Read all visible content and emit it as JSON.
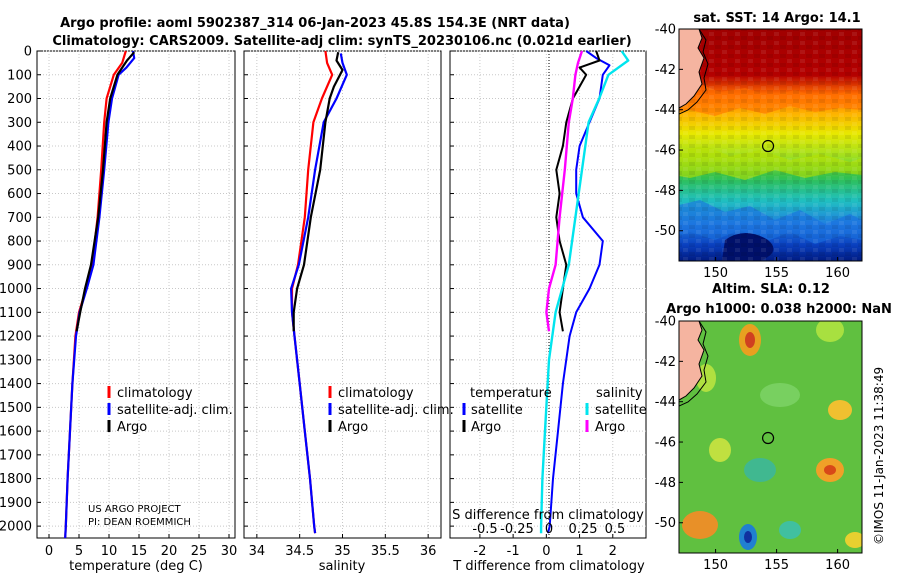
{
  "title": {
    "line1": "Argo profile: aoml 5902387_314 06-Jan-2023 45.8S 154.3E (NRT data)",
    "line2": "Climatology: CARS2009. Satellite-adj clim: synTS_20230106.nc (0.021d earlier)"
  },
  "credit": "©IMOS 11-Jan-2023 11:38:49",
  "colors": {
    "climatology": "#ff0000",
    "satellite": "#0000ff",
    "argo": "#000000",
    "s_satellite": "#00e5ee",
    "s_argo": "#ff00ff"
  },
  "depth_axis": {
    "ticks": [
      0,
      100,
      200,
      300,
      400,
      500,
      600,
      700,
      800,
      900,
      1000,
      1100,
      1200,
      1300,
      1400,
      1500,
      1600,
      1700,
      1800,
      1900,
      2000
    ],
    "ylim": [
      0,
      2050
    ]
  },
  "chart_data": [
    {
      "type": "line",
      "id": "temperature",
      "xlabel": "temperature (deg C)",
      "xlim": [
        -2,
        31
      ],
      "xticks": [
        0,
        5,
        10,
        15,
        20,
        25,
        30
      ],
      "legend": {
        "position": "lower-middle",
        "items": [
          "climatology",
          "satellite-adj. clim.",
          "Argo"
        ]
      },
      "series": [
        {
          "name": "climatology",
          "points": [
            [
              12.8,
              0
            ],
            [
              12.2,
              50
            ],
            [
              10.8,
              100
            ],
            [
              9.6,
              200
            ],
            [
              9.2,
              300
            ],
            [
              8.7,
              500
            ],
            [
              8.1,
              700
            ],
            [
              7.2,
              900
            ],
            [
              6.2,
              1000
            ],
            [
              5.0,
              1100
            ],
            [
              4.4,
              1200
            ],
            [
              3.9,
              1400
            ],
            [
              3.5,
              1600
            ],
            [
              3.1,
              1800
            ],
            [
              2.8,
              2000
            ],
            [
              2.7,
              2050
            ]
          ]
        },
        {
          "name": "satellite-adj. clim.",
          "points": [
            [
              14.0,
              0
            ],
            [
              14.2,
              30
            ],
            [
              12.9,
              70
            ],
            [
              11.6,
              100
            ],
            [
              10.5,
              200
            ],
            [
              9.9,
              300
            ],
            [
              9.2,
              500
            ],
            [
              8.4,
              700
            ],
            [
              7.4,
              900
            ],
            [
              6.3,
              1000
            ],
            [
              5.1,
              1100
            ],
            [
              4.5,
              1200
            ],
            [
              3.9,
              1400
            ],
            [
              3.5,
              1600
            ],
            [
              3.1,
              1800
            ],
            [
              2.8,
              2000
            ],
            [
              2.7,
              2050
            ]
          ]
        },
        {
          "name": "Argo",
          "points": [
            [
              14.2,
              5
            ],
            [
              13.0,
              40
            ],
            [
              11.4,
              100
            ],
            [
              10.2,
              200
            ],
            [
              9.6,
              300
            ],
            [
              9.0,
              500
            ],
            [
              8.2,
              700
            ],
            [
              7.0,
              900
            ],
            [
              6.0,
              1000
            ],
            [
              5.2,
              1100
            ],
            [
              4.6,
              1180
            ]
          ]
        }
      ]
    },
    {
      "type": "line",
      "id": "salinity",
      "xlabel": "salinity",
      "xlim": [
        33.85,
        36.15
      ],
      "xticks": [
        34,
        34.5,
        35,
        35.5,
        36
      ],
      "legend": {
        "position": "lower-middle",
        "items": [
          "climatology",
          "satellite-adj. clim.",
          "Argo"
        ]
      },
      "series": [
        {
          "name": "climatology",
          "points": [
            [
              34.8,
              0
            ],
            [
              34.82,
              50
            ],
            [
              34.88,
              100
            ],
            [
              34.76,
              200
            ],
            [
              34.66,
              300
            ],
            [
              34.6,
              500
            ],
            [
              34.56,
              700
            ],
            [
              34.48,
              900
            ],
            [
              34.41,
              1000
            ],
            [
              34.41,
              1100
            ],
            [
              34.44,
              1200
            ],
            [
              34.5,
              1400
            ],
            [
              34.56,
              1600
            ],
            [
              34.62,
              1800
            ],
            [
              34.67,
              2000
            ],
            [
              34.68,
              2030
            ]
          ]
        },
        {
          "name": "satellite-adj. clim.",
          "points": [
            [
              34.98,
              10
            ],
            [
              35.0,
              50
            ],
            [
              35.05,
              100
            ],
            [
              34.93,
              200
            ],
            [
              34.78,
              300
            ],
            [
              34.68,
              500
            ],
            [
              34.6,
              700
            ],
            [
              34.49,
              900
            ],
            [
              34.4,
              1000
            ],
            [
              34.41,
              1100
            ],
            [
              34.44,
              1200
            ],
            [
              34.5,
              1400
            ],
            [
              34.56,
              1600
            ],
            [
              34.62,
              1800
            ],
            [
              34.67,
              2000
            ],
            [
              34.68,
              2030
            ]
          ]
        },
        {
          "name": "Argo",
          "points": [
            [
              34.95,
              5
            ],
            [
              34.93,
              40
            ],
            [
              35.0,
              80
            ],
            [
              34.9,
              150
            ],
            [
              34.85,
              200
            ],
            [
              34.8,
              300
            ],
            [
              34.74,
              500
            ],
            [
              34.63,
              700
            ],
            [
              34.55,
              900
            ],
            [
              34.47,
              1000
            ],
            [
              34.43,
              1100
            ],
            [
              34.43,
              1180
            ]
          ]
        }
      ]
    },
    {
      "type": "line",
      "id": "difference",
      "xlabel": "T difference from climatology",
      "x2label": "S difference from climatology",
      "xlim": [
        -2.9,
        3.0
      ],
      "xticks": [
        -2,
        -1,
        0,
        1,
        2
      ],
      "x2ticks": [
        "-0.5",
        "-0.25",
        "0",
        "0.25",
        "0.5"
      ],
      "legend_temperature": {
        "title": "temperature",
        "items": [
          "satellite",
          "Argo"
        ]
      },
      "legend_salinity": {
        "title": "salinity",
        "items": [
          "satellite",
          "Argo"
        ]
      },
      "series": [
        {
          "name": "T satellite",
          "points": [
            [
              1.2,
              0
            ],
            [
              1.5,
              30
            ],
            [
              1.9,
              60
            ],
            [
              1.7,
              100
            ],
            [
              1.6,
              200
            ],
            [
              1.3,
              300
            ],
            [
              1.0,
              400
            ],
            [
              0.9,
              500
            ],
            [
              0.9,
              600
            ],
            [
              1.1,
              700
            ],
            [
              1.7,
              800
            ],
            [
              1.6,
              900
            ],
            [
              1.3,
              1000
            ],
            [
              0.9,
              1100
            ],
            [
              0.7,
              1200
            ],
            [
              0.5,
              1400
            ],
            [
              0.35,
              1600
            ],
            [
              0.2,
              1800
            ],
            [
              0.1,
              2000
            ],
            [
              0.05,
              2030
            ]
          ]
        },
        {
          "name": "T Argo",
          "points": [
            [
              1.5,
              0
            ],
            [
              1.6,
              40
            ],
            [
              1.0,
              70
            ],
            [
              1.2,
              100
            ],
            [
              0.8,
              200
            ],
            [
              0.6,
              300
            ],
            [
              0.5,
              400
            ],
            [
              0.3,
              500
            ],
            [
              0.4,
              600
            ],
            [
              0.3,
              700
            ],
            [
              0.4,
              800
            ],
            [
              0.6,
              900
            ],
            [
              0.5,
              1000
            ],
            [
              0.4,
              1100
            ],
            [
              0.5,
              1180
            ]
          ]
        },
        {
          "name": "S satellite",
          "points": [
            [
              0.55,
              0
            ],
            [
              0.6,
              40
            ],
            [
              0.45,
              100
            ],
            [
              0.38,
              200
            ],
            [
              0.3,
              300
            ],
            [
              0.25,
              500
            ],
            [
              0.2,
              700
            ],
            [
              0.15,
              900
            ],
            [
              0.05,
              1100
            ],
            [
              0.0,
              1300
            ],
            [
              -0.03,
              1600
            ],
            [
              -0.05,
              1800
            ],
            [
              -0.06,
              2000
            ],
            [
              -0.06,
              2030
            ]
          ]
        },
        {
          "name": "S Argo",
          "points": [
            [
              0.25,
              0
            ],
            [
              0.22,
              50
            ],
            [
              0.2,
              100
            ],
            [
              0.18,
              200
            ],
            [
              0.15,
              300
            ],
            [
              0.12,
              500
            ],
            [
              0.08,
              700
            ],
            [
              0.05,
              900
            ],
            [
              0.0,
              1000
            ],
            [
              -0.02,
              1100
            ],
            [
              0.0,
              1180
            ]
          ]
        }
      ]
    },
    {
      "type": "heatmap",
      "id": "sst_map",
      "title": "sat. SST: 14 Argo: 14.1",
      "xlim": [
        147,
        162
      ],
      "ylim": [
        -51.5,
        -40
      ],
      "xticks": [
        150,
        155,
        160
      ],
      "yticks": [
        -40,
        -42,
        -44,
        -46,
        -48,
        -50
      ],
      "profile_marker": [
        154.3,
        -45.8
      ]
    },
    {
      "type": "heatmap",
      "id": "sla_map",
      "title": "Altim. SLA: 0.12",
      "subtitle": "Argo h1000: 0.038 h2000: NaN",
      "xlim": [
        147,
        162
      ],
      "ylim": [
        -51.5,
        -40
      ],
      "xticks": [
        150,
        155,
        160
      ],
      "yticks": [
        -40,
        -42,
        -44,
        -46,
        -48,
        -50
      ],
      "profile_marker": [
        154.3,
        -45.8
      ]
    }
  ]
}
